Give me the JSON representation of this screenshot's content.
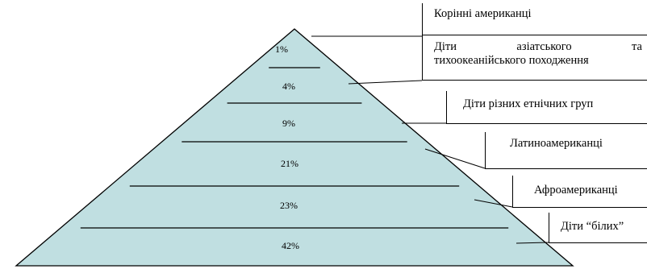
{
  "diagram": {
    "type": "pyramid",
    "fill_color": "#c0dfe1",
    "line_color": "#000000",
    "levels": [
      {
        "percent": "1%",
        "label": "Корінні американці"
      },
      {
        "percent": "4%",
        "label_line1": [
          "Діти",
          "азіатського",
          "та"
        ],
        "label_line2": "тихоокеанійського походження"
      },
      {
        "percent": "9%",
        "label": "Діти різних етнічних груп"
      },
      {
        "percent": "21%",
        "label": "Латиноамериканці"
      },
      {
        "percent": "23%",
        "label": "Афроамериканці"
      },
      {
        "percent": "42%",
        "label": "Діти “білих”"
      }
    ]
  }
}
